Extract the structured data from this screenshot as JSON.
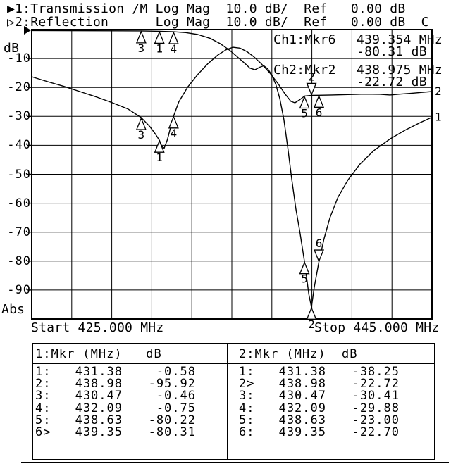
{
  "header": {
    "line1": "▶1:Transmission /M Log Mag  10.0 dB/  Ref   0.00 dB",
    "line2": "▷2:Reflection      Log Mag  10.0 dB/  Ref   0.00 dB  C"
  },
  "readouts": {
    "ch1_label": "Ch1:Mkr6",
    "ch1_freq": "439.354 MHz",
    "ch1_level": "-80.31 dB",
    "ch2_label": "Ch2:Mkr2",
    "ch2_freq": "438.975 MHz",
    "ch2_level": "-22.72 dB"
  },
  "axis": {
    "unit_label": "dB",
    "abs_label": "Abs",
    "y_tick_labels": [
      "-10",
      "-20",
      "-30",
      "-40",
      "-50",
      "-60",
      "-70",
      "-80",
      "-90"
    ],
    "start_label": "Start 425.000 MHz",
    "stop_label": "Stop 445.000 MHz"
  },
  "chart_data": {
    "type": "line",
    "title": "",
    "x_unit": "MHz",
    "y_unit": "dB",
    "x_range": [
      425,
      445
    ],
    "y_range": [
      -100,
      0
    ],
    "x_divisions": 10,
    "y_divisions": 10,
    "grid": true,
    "series": [
      {
        "name": "Ch1 Transmission /M (Log Mag 10.0 dB/div, Ref 0.00 dB)",
        "end_label": "1",
        "points": [
          [
            425,
            -0.35
          ],
          [
            426.5,
            -0.38
          ],
          [
            428,
            -0.42
          ],
          [
            429.5,
            -0.44
          ],
          [
            430.47,
            -0.46
          ],
          [
            431.38,
            -0.58
          ],
          [
            432.09,
            -0.75
          ],
          [
            432.7,
            -1.05
          ],
          [
            433.3,
            -1.7
          ],
          [
            433.9,
            -3
          ],
          [
            434.4,
            -4.8
          ],
          [
            434.9,
            -7.2
          ],
          [
            435.4,
            -10.2
          ],
          [
            435.7,
            -12
          ],
          [
            435.9,
            -13.3
          ],
          [
            436.15,
            -13.9
          ],
          [
            436.4,
            -13
          ],
          [
            436.6,
            -12.5
          ],
          [
            436.8,
            -13.6
          ],
          [
            437,
            -15.8
          ],
          [
            437.2,
            -19
          ],
          [
            437.4,
            -24
          ],
          [
            437.6,
            -31
          ],
          [
            437.8,
            -41
          ],
          [
            438,
            -52
          ],
          [
            438.2,
            -62
          ],
          [
            438.4,
            -70
          ],
          [
            438.63,
            -80.22
          ],
          [
            438.85,
            -91.5
          ],
          [
            438.98,
            -95.92
          ],
          [
            439.12,
            -89
          ],
          [
            439.35,
            -80.31
          ],
          [
            439.6,
            -72.5
          ],
          [
            439.9,
            -65
          ],
          [
            440.3,
            -58
          ],
          [
            440.8,
            -52
          ],
          [
            441.4,
            -46.5
          ],
          [
            442.1,
            -41.8
          ],
          [
            442.9,
            -37.8
          ],
          [
            443.7,
            -34.6
          ],
          [
            444.4,
            -32.2
          ],
          [
            445,
            -30.3
          ]
        ]
      },
      {
        "name": "Ch2 Reflection (Log Mag 10.0 dB/div, Ref 0.00 dB)",
        "end_label": "2",
        "points": [
          [
            425,
            -16.3
          ],
          [
            425.8,
            -18
          ],
          [
            426.6,
            -19.6
          ],
          [
            427.4,
            -21.4
          ],
          [
            428.2,
            -23.2
          ],
          [
            429,
            -25.2
          ],
          [
            429.8,
            -27.4
          ],
          [
            430.47,
            -30.41
          ],
          [
            430.9,
            -33.5
          ],
          [
            431.2,
            -36.3
          ],
          [
            431.38,
            -38.25
          ],
          [
            431.5,
            -40.3
          ],
          [
            431.62,
            -41
          ],
          [
            431.78,
            -38
          ],
          [
            431.95,
            -33.5
          ],
          [
            432.09,
            -29.88
          ],
          [
            432.35,
            -25
          ],
          [
            432.8,
            -19.8
          ],
          [
            433.3,
            -15.5
          ],
          [
            433.8,
            -11.8
          ],
          [
            434.3,
            -8.8
          ],
          [
            434.7,
            -7
          ],
          [
            435.05,
            -6.1
          ],
          [
            435.4,
            -6.4
          ],
          [
            435.75,
            -7.6
          ],
          [
            436.1,
            -9.4
          ],
          [
            436.5,
            -12
          ],
          [
            436.9,
            -15
          ],
          [
            437.3,
            -18.6
          ],
          [
            437.65,
            -22.2
          ],
          [
            437.95,
            -24.8
          ],
          [
            438.15,
            -25.3
          ],
          [
            438.4,
            -24.2
          ],
          [
            438.63,
            -23
          ],
          [
            438.98,
            -22.72
          ],
          [
            439.35,
            -22.7
          ],
          [
            440,
            -22.6
          ],
          [
            440.8,
            -22.45
          ],
          [
            441.6,
            -22.3
          ],
          [
            442.4,
            -22.35
          ],
          [
            442.9,
            -22.6
          ],
          [
            443.4,
            -22.3
          ],
          [
            444,
            -22
          ],
          [
            444.5,
            -21.7
          ],
          [
            445,
            -21.4
          ]
        ]
      }
    ],
    "markers": [
      {
        "channel": 1,
        "n": "3",
        "f": 430.47,
        "db": -0.46,
        "dir": "up"
      },
      {
        "channel": 1,
        "n": "1",
        "f": 431.38,
        "db": -0.58,
        "dir": "up"
      },
      {
        "channel": 1,
        "n": "4",
        "f": 432.09,
        "db": -0.75,
        "dir": "up"
      },
      {
        "channel": 1,
        "n": "5",
        "f": 438.63,
        "db": -80.22,
        "dir": "up"
      },
      {
        "channel": 1,
        "n": "2",
        "f": 438.98,
        "db": -95.92,
        "dir": "up"
      },
      {
        "channel": 1,
        "n": "6",
        "f": 439.35,
        "db": -80.31,
        "dir": "down"
      },
      {
        "channel": 2,
        "n": "3",
        "f": 430.47,
        "db": -30.41,
        "dir": "up"
      },
      {
        "channel": 2,
        "n": "1",
        "f": 431.38,
        "db": -38.25,
        "dir": "up"
      },
      {
        "channel": 2,
        "n": "4",
        "f": 432.09,
        "db": -29.88,
        "dir": "up"
      },
      {
        "channel": 2,
        "n": "5",
        "f": 438.63,
        "db": -23,
        "dir": "up"
      },
      {
        "channel": 2,
        "n": "2",
        "f": 438.98,
        "db": -22.72,
        "dir": "down"
      },
      {
        "channel": 2,
        "n": "6",
        "f": 439.35,
        "db": -22.7,
        "dir": "up"
      }
    ]
  },
  "marker_tables": {
    "ch1": {
      "header": "1:Mkr (MHz)   dB",
      "rows": [
        [
          "1:",
          "431.38",
          "-0.58"
        ],
        [
          "2:",
          "438.98",
          "-95.92"
        ],
        [
          "3:",
          "430.47",
          "-0.46"
        ],
        [
          "4:",
          "432.09",
          "-0.75"
        ],
        [
          "5:",
          "438.63",
          "-80.22"
        ],
        [
          "6>",
          "439.35",
          "-80.31"
        ]
      ]
    },
    "ch2": {
      "header": "2:Mkr (MHz)  dB",
      "rows": [
        [
          "1:",
          "431.38",
          "-38.25"
        ],
        [
          "2>",
          "438.98",
          "-22.72"
        ],
        [
          "3:",
          "430.47",
          "-30.41"
        ],
        [
          "4:",
          "432.09",
          "-29.88"
        ],
        [
          "5:",
          "438.63",
          "-23.00"
        ],
        [
          "6:",
          "439.35",
          "-22.70"
        ]
      ]
    }
  }
}
